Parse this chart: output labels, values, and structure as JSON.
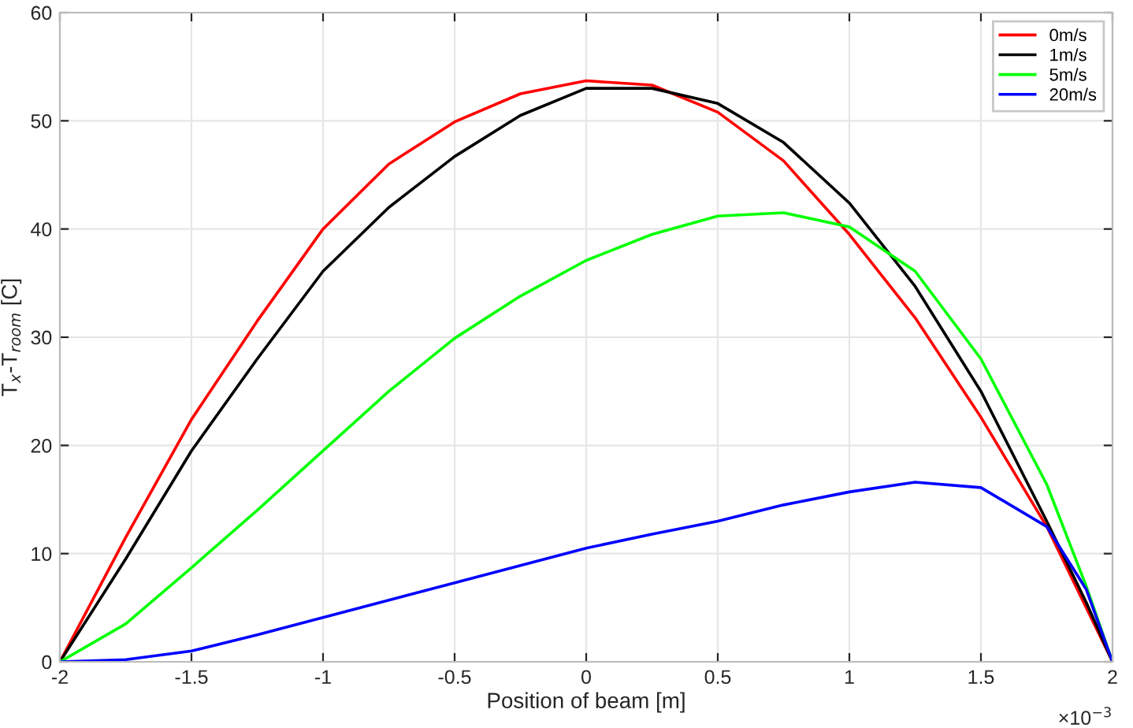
{
  "chart_data": {
    "type": "line",
    "xlabel": "Position of beam [m]",
    "ylabel": "T$_{x}$-T$_{room}$ [C]",
    "annotations": [
      "×10$^{−3}$"
    ],
    "x": [
      -2,
      -1.75,
      -1.5,
      -1.25,
      -1,
      -0.75,
      -0.5,
      -0.25,
      0,
      0.25,
      0.5,
      0.75,
      1,
      1.25,
      1.5,
      1.75,
      1.9,
      2
    ],
    "series": [
      {
        "name": "0m/s",
        "color": "#ff0000",
        "values": [
          0,
          11.5,
          22.4,
          31.5,
          40,
          46,
          49.9,
          52.5,
          53.7,
          53.3,
          50.8,
          46.3,
          39.5,
          31.8,
          22.6,
          12.5,
          5,
          0
        ]
      },
      {
        "name": "1m/s",
        "color": "#000000",
        "values": [
          0,
          9.5,
          19.5,
          28,
          36.1,
          42,
          46.7,
          50.5,
          53,
          53,
          51.6,
          48,
          42.4,
          34.7,
          25,
          13,
          5.5,
          0
        ]
      },
      {
        "name": "5m/s",
        "color": "#00ff00",
        "values": [
          0,
          3.5,
          8.7,
          14,
          19.5,
          25,
          29.9,
          33.8,
          37.1,
          39.5,
          41.2,
          41.5,
          40.2,
          36.1,
          28,
          16.4,
          7,
          0
        ]
      },
      {
        "name": "20m/s",
        "color": "#0000ff",
        "values": [
          0,
          0.2,
          1,
          2.5,
          4.1,
          5.7,
          7.3,
          8.9,
          10.5,
          11.8,
          13,
          14.5,
          15.7,
          16.6,
          16.1,
          12.5,
          6.7,
          0
        ]
      }
    ],
    "xlim": [
      -2,
      2
    ],
    "xticks": [
      -2,
      -1.5,
      -1,
      -0.5,
      0,
      0.5,
      1,
      1.5,
      2
    ],
    "ylim": [
      0,
      60
    ],
    "yticks": [
      0,
      10,
      20,
      30,
      40,
      50,
      60
    ],
    "grid": true,
    "legend": "top right",
    "marker": "none",
    "line_style": "solid"
  }
}
